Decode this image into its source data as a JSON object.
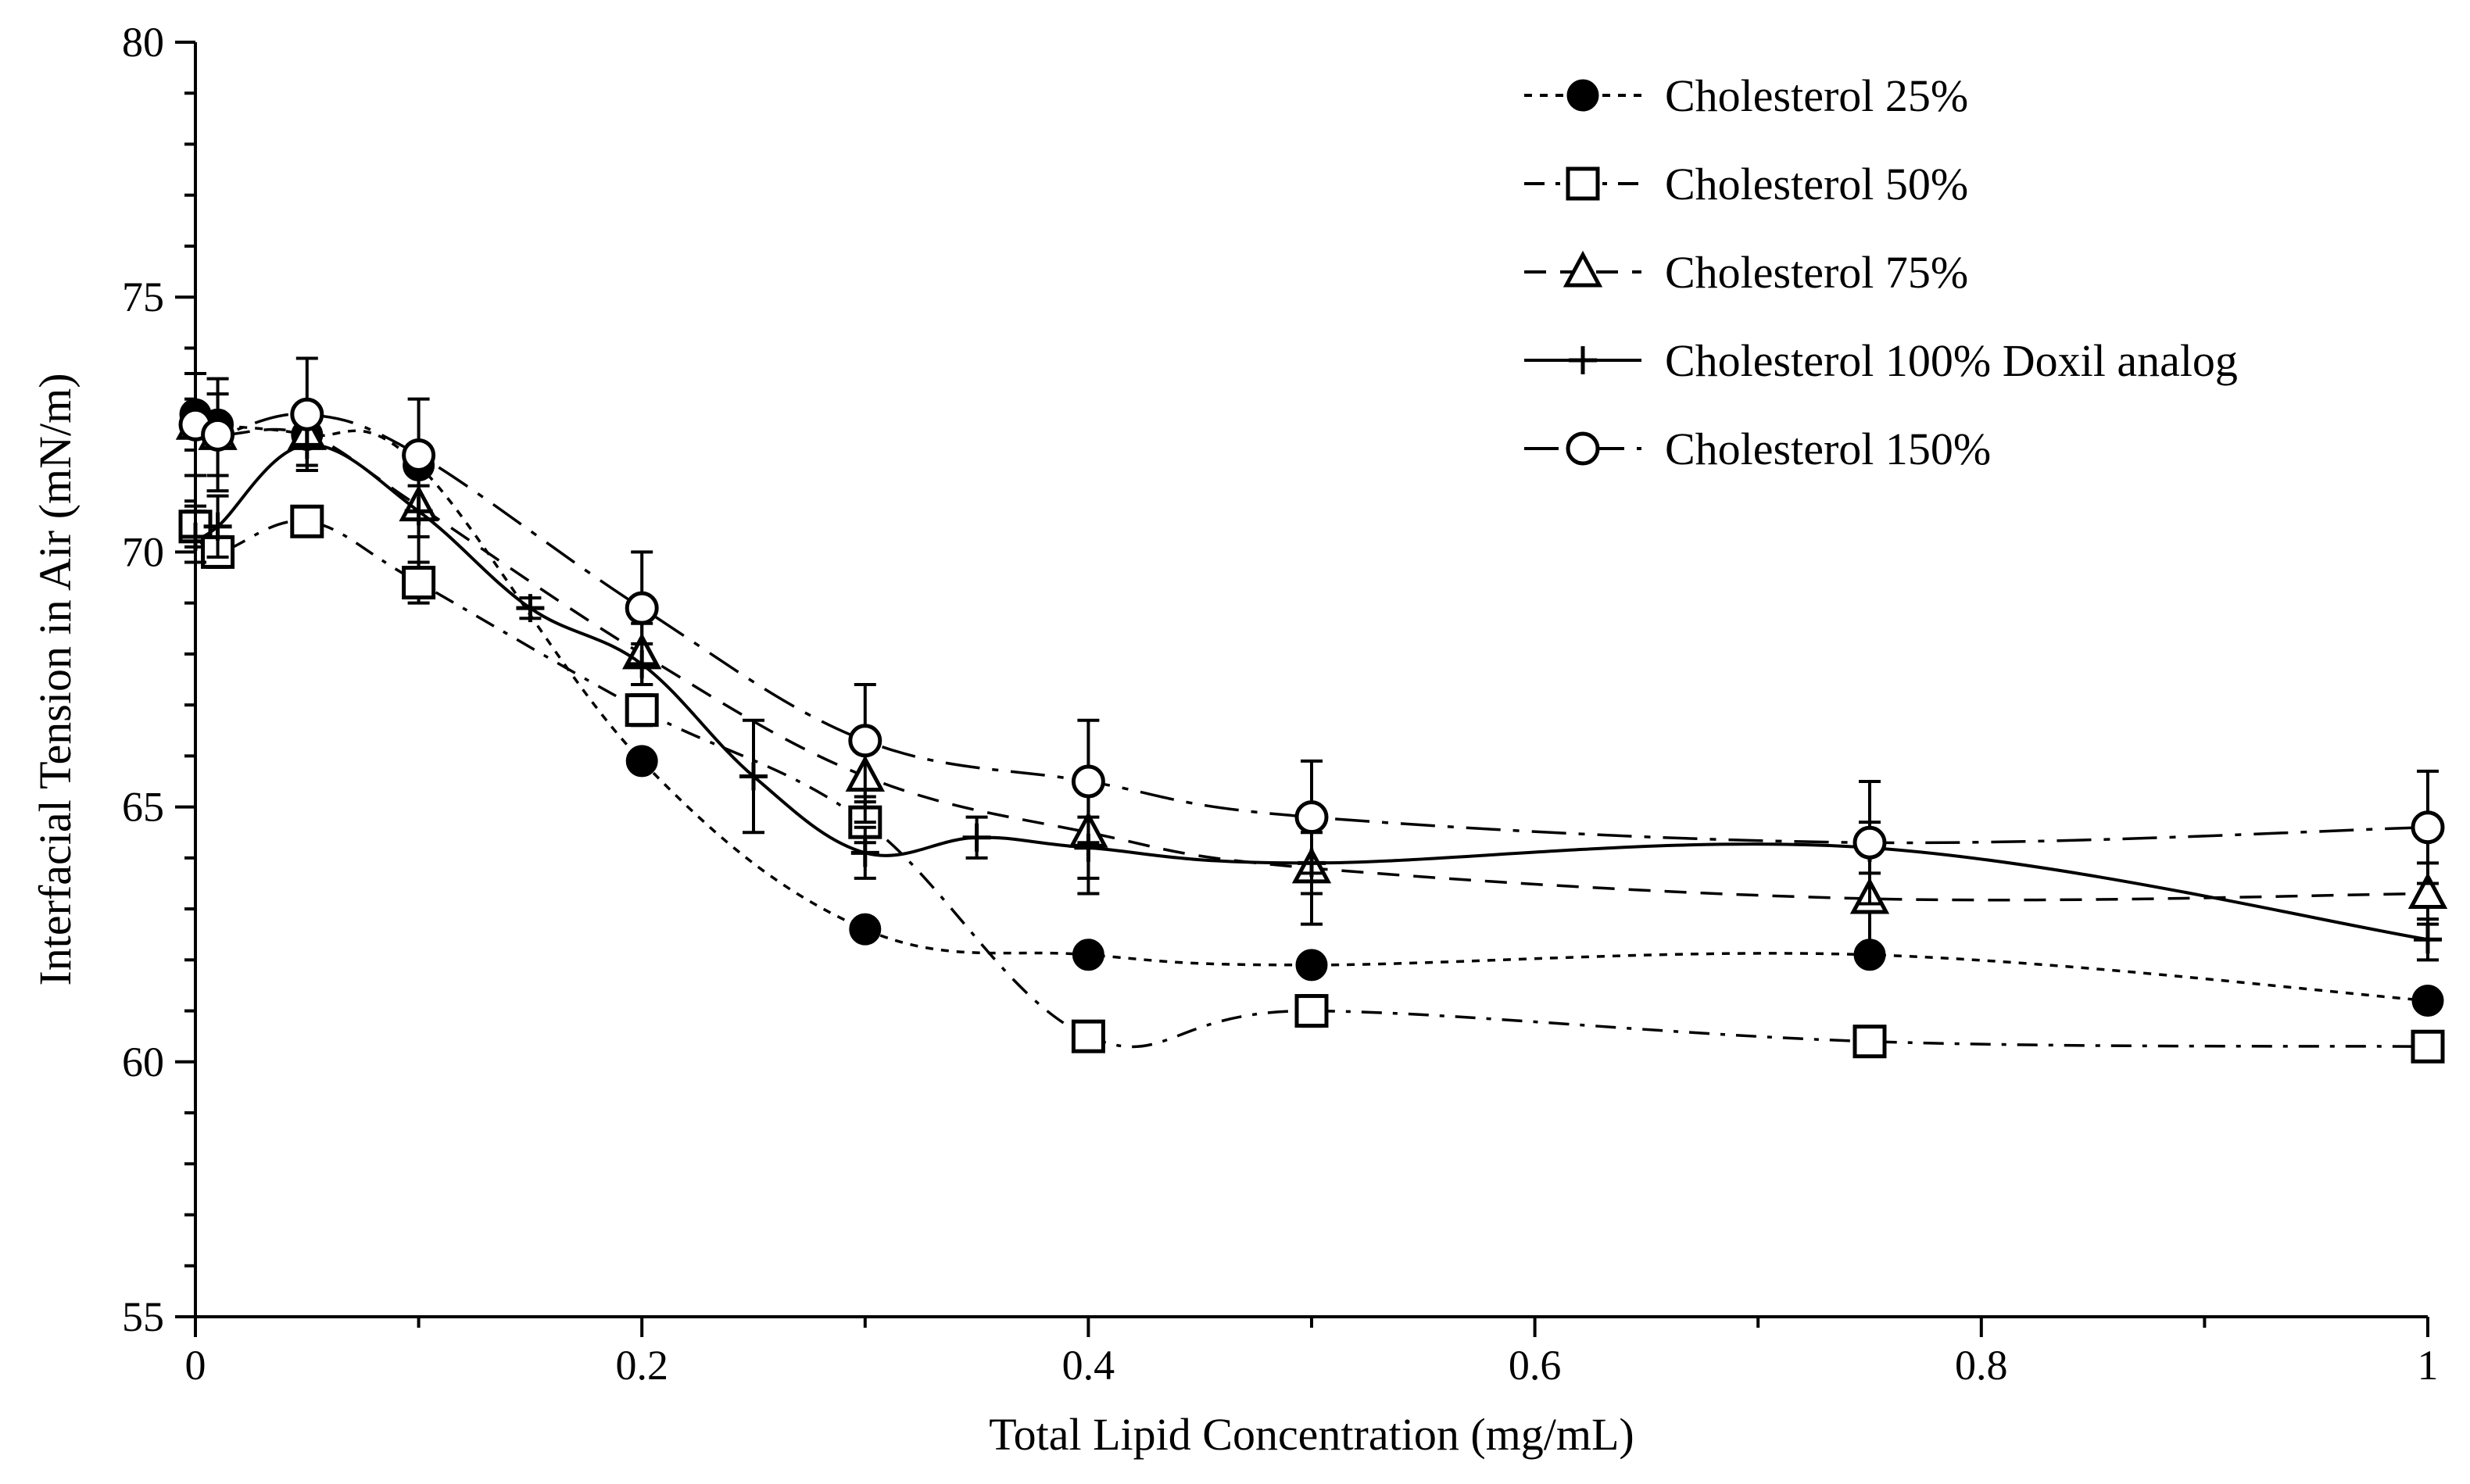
{
  "chart_data": {
    "type": "line",
    "title": "",
    "xlabel": "Total Lipid Concentration (mg/mL)",
    "ylabel": "Interfacial Tension in Air (mN/m)",
    "xlim": [
      0,
      1
    ],
    "ylim": [
      55,
      80
    ],
    "xticks": [
      0,
      0.2,
      0.4,
      0.6,
      0.8,
      1
    ],
    "xtick_labels": [
      "0",
      "0.2",
      "0.4",
      "0.6",
      "0.8",
      "1"
    ],
    "yticks": [
      55,
      60,
      65,
      70,
      75,
      80
    ],
    "ytick_labels": [
      "55",
      "60",
      "65",
      "70",
      "75",
      "80"
    ],
    "grid": false,
    "legend_position": "top-right",
    "series": [
      {
        "name": "Cholesterol 25%",
        "marker": "filled-circle",
        "line": "dotted",
        "x": [
          0,
          0.01,
          0.05,
          0.1,
          0.2,
          0.3,
          0.4,
          0.5,
          0.75,
          1
        ],
        "y": [
          72.7,
          72.5,
          72.3,
          71.7,
          65.9,
          62.6,
          62.1,
          61.9,
          62.1,
          61.2
        ],
        "err": [
          0,
          0,
          0,
          0,
          0.2,
          0,
          0,
          0,
          0,
          0
        ]
      },
      {
        "name": "Cholesterol 50%",
        "marker": "open-square",
        "line": "dash-dot",
        "x": [
          0,
          0.01,
          0.05,
          0.1,
          0.2,
          0.3,
          0.4,
          0.5,
          0.75,
          1
        ],
        "y": [
          70.5,
          70.0,
          70.6,
          69.4,
          66.9,
          64.7,
          60.5,
          61.0,
          60.4,
          60.3
        ],
        "err": [
          0.4,
          0.3,
          0.2,
          0.4,
          0.3,
          0.4,
          0.2,
          0.3,
          0.1,
          0.1
        ]
      },
      {
        "name": "Cholesterol 75%",
        "marker": "open-triangle",
        "line": "dashed",
        "x": [
          0,
          0.01,
          0.05,
          0.1,
          0.2,
          0.3,
          0.4,
          0.5,
          0.75,
          1
        ],
        "y": [
          72.5,
          72.3,
          72.3,
          70.9,
          68.0,
          65.6,
          64.5,
          63.8,
          63.2,
          63.3
        ],
        "err": [
          1.0,
          0.8,
          0.6,
          1.2,
          0.6,
          0.9,
          1.2,
          1.1,
          1.2,
          0.6
        ]
      },
      {
        "name": "Cholesterol 100% Doxil analog",
        "marker": "plus",
        "line": "solid",
        "x": [
          0,
          0.01,
          0.05,
          0.1,
          0.15,
          0.2,
          0.25,
          0.3,
          0.35,
          0.4,
          0.5,
          0.75,
          1
        ],
        "y": [
          70.3,
          70.5,
          72.1,
          70.8,
          68.9,
          67.8,
          65.6,
          64.1,
          64.4,
          64.2,
          63.9,
          64.2,
          62.4
        ],
        "err": [
          0.5,
          0.6,
          0.5,
          0.5,
          0.2,
          0.4,
          1.1,
          0.5,
          0.4,
          0.6,
          0.6,
          0.5,
          0.4
        ]
      },
      {
        "name": "Cholesterol 150%",
        "marker": "open-circle",
        "line": "long-dash-dot",
        "x": [
          0,
          0.01,
          0.05,
          0.1,
          0.2,
          0.3,
          0.4,
          0.5,
          0.75,
          1
        ],
        "y": [
          72.5,
          72.3,
          72.7,
          71.9,
          68.9,
          66.3,
          65.5,
          64.8,
          64.3,
          64.6
        ],
        "err": [
          1.0,
          1.1,
          1.1,
          1.1,
          1.1,
          1.1,
          1.2,
          1.1,
          1.2,
          1.1
        ]
      }
    ]
  },
  "colors": {
    "ink": "#000000",
    "background": "#ffffff"
  }
}
